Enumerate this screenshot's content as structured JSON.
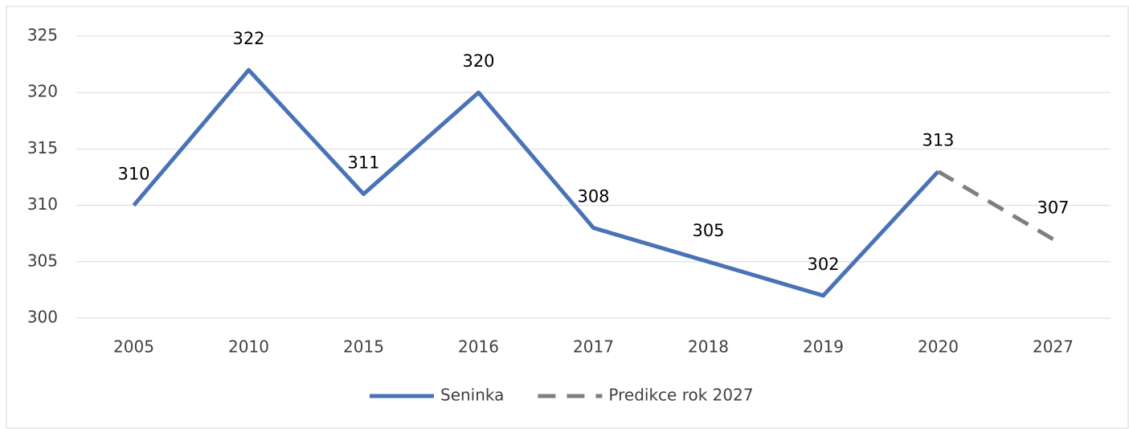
{
  "chart_data": {
    "type": "line",
    "categories": [
      "2005",
      "2010",
      "2015",
      "2016",
      "2017",
      "2018",
      "2019",
      "2020",
      "2027"
    ],
    "series": [
      {
        "name": "Seninka",
        "color": "#4a72b8",
        "dashed": false,
        "values": [
          310,
          322,
          311,
          320,
          308,
          305,
          302,
          313,
          null
        ]
      },
      {
        "name": "Predikce rok 2027",
        "color": "#7f7f7f",
        "dashed": true,
        "values": [
          null,
          null,
          null,
          null,
          null,
          null,
          null,
          313,
          307
        ]
      }
    ],
    "ylim": [
      300,
      325
    ],
    "yticks": [
      300,
      305,
      310,
      315,
      320,
      325
    ],
    "grid": true,
    "legend": "bottom"
  }
}
